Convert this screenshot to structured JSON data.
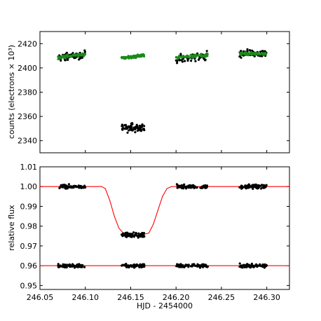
{
  "chart_data": [
    {
      "type": "scatter",
      "panel": "top",
      "xlabel": "",
      "ylabel": "counts (electrons × 10³)",
      "xlim": [
        246.05,
        246.325
      ],
      "ylim": [
        2330,
        2430
      ],
      "yticks": [
        "2340",
        "2360",
        "2380",
        "2400",
        "2420"
      ],
      "series": [
        {
          "color": "#000000",
          "clusters": [
            {
              "x_range": [
                246.07,
                246.1
              ],
              "center": 2409.5,
              "slope": 3,
              "spread": 2.5
            },
            {
              "x_range": [
                246.14,
                246.165
              ],
              "center": 2350.5,
              "slope": 0,
              "spread": 2.8
            },
            {
              "x_range": [
                246.2,
                246.235
              ],
              "center": 2409.0,
              "slope": 3,
              "spread": 2.8
            },
            {
              "x_range": [
                246.27,
                246.3
              ],
              "center": 2412.0,
              "slope": 0,
              "spread": 2.6
            }
          ]
        },
        {
          "color": "#1a8a1a",
          "clusters": [
            {
              "x_range": [
                246.07,
                246.1
              ],
              "center": 2410.0,
              "slope": 3,
              "spread": 1.0
            },
            {
              "x_range": [
                246.14,
                246.165
              ],
              "center": 2409.3,
              "slope": 2,
              "spread": 1.0
            },
            {
              "x_range": [
                246.2,
                246.235
              ],
              "center": 2409.5,
              "slope": 2,
              "spread": 1.0
            },
            {
              "x_range": [
                246.27,
                246.3
              ],
              "center": 2411.5,
              "slope": 0,
              "spread": 1.0
            }
          ]
        }
      ]
    },
    {
      "type": "scatter",
      "panel": "bottom",
      "xlabel": "HJD - 2454000",
      "ylabel": "relative flux",
      "xlim": [
        246.05,
        246.325
      ],
      "ylim": [
        0.948,
        1.01
      ],
      "xticks": [
        "246.05",
        "246.10",
        "246.15",
        "246.20",
        "246.25",
        "246.30"
      ],
      "yticks": [
        "0.95",
        "0.96",
        "0.97",
        "0.98",
        "0.99",
        "1.00",
        "1.01"
      ],
      "series": [
        {
          "color": "#000000",
          "clusters": [
            {
              "x_range": [
                246.07,
                246.1
              ],
              "center": 1.0,
              "slope": 0,
              "spread": 0.0008
            },
            {
              "x_range": [
                246.14,
                246.165
              ],
              "center": 0.9755,
              "slope": 0,
              "spread": 0.0009
            },
            {
              "x_range": [
                246.2,
                246.235
              ],
              "center": 1.0,
              "slope": 0,
              "spread": 0.0008
            },
            {
              "x_range": [
                246.27,
                246.3
              ],
              "center": 1.0,
              "slope": 0,
              "spread": 0.0008
            },
            {
              "x_range": [
                246.07,
                246.1
              ],
              "center": 0.96,
              "slope": 0,
              "spread": 0.0008
            },
            {
              "x_range": [
                246.14,
                246.165
              ],
              "center": 0.96,
              "slope": 0,
              "spread": 0.0008
            },
            {
              "x_range": [
                246.2,
                246.235
              ],
              "center": 0.96,
              "slope": 0,
              "spread": 0.0008
            },
            {
              "x_range": [
                246.27,
                246.3
              ],
              "center": 0.96,
              "slope": 0,
              "spread": 0.0008
            }
          ]
        }
      ],
      "model_lines": [
        {
          "color": "#ff0000",
          "x": [
            246.05,
            246.118,
            246.122,
            246.127,
            246.132,
            246.137,
            246.142,
            246.15,
            246.16,
            246.17,
            246.175,
            246.18,
            246.185,
            246.19,
            246.195,
            246.2,
            246.325
          ],
          "y": [
            1.0,
            1.0,
            0.999,
            0.993,
            0.985,
            0.979,
            0.9765,
            0.9755,
            0.9755,
            0.9765,
            0.981,
            0.988,
            0.995,
            0.999,
            1.0,
            1.0,
            1.0
          ]
        },
        {
          "color": "#ff0000",
          "x": [
            246.05,
            246.325
          ],
          "y": [
            0.96,
            0.96
          ]
        }
      ]
    }
  ]
}
